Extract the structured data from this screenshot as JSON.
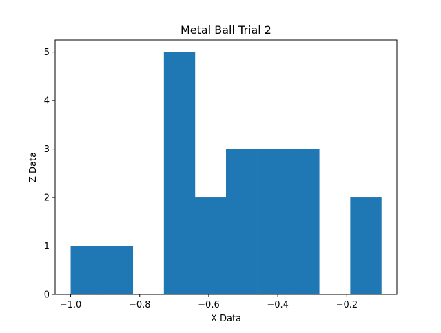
{
  "chart_data": {
    "type": "bar",
    "title": "Metal Ball Trial 2",
    "xlabel": "X Data",
    "ylabel": "Z Data",
    "xlim": [
      -1.045,
      -0.055
    ],
    "ylim": [
      0,
      5.25
    ],
    "bin_edges": [
      -1.0,
      -0.91,
      -0.82,
      -0.73,
      -0.64,
      -0.55,
      -0.46,
      -0.37,
      -0.28,
      -0.19,
      -0.1
    ],
    "values": [
      1,
      1,
      0,
      5,
      2,
      3,
      3,
      3,
      0,
      2
    ],
    "x_ticks": [
      -1.0,
      -0.8,
      -0.6,
      -0.4,
      -0.2
    ],
    "x_tick_labels": [
      "−1.0",
      "−0.8",
      "−0.6",
      "−0.4",
      "−0.2"
    ],
    "y_ticks": [
      0,
      1,
      2,
      3,
      4,
      5
    ],
    "y_tick_labels": [
      "0",
      "1",
      "2",
      "3",
      "4",
      "5"
    ],
    "grid": false,
    "legend": false,
    "bar_color": "#1f77b4"
  }
}
